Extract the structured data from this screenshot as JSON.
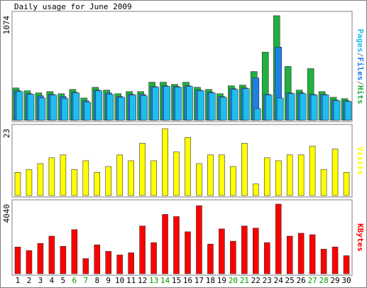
{
  "chart_data": [
    {
      "type": "bar",
      "title": "Daily usage for June 2009",
      "ylim": [
        0,
        1074
      ],
      "yticks": [
        1074
      ],
      "legend_separator": "/",
      "legend_order": [
        2,
        1,
        0
      ],
      "series": [
        {
          "name": "Hits",
          "color": "#20b040",
          "values": [
            331,
            302,
            280,
            294,
            272,
            316,
            228,
            338,
            309,
            272,
            294,
            294,
            390,
            390,
            368,
            390,
            338,
            316,
            272,
            353,
            360,
            500,
            699,
            1074,
            552,
            309,
            530,
            294,
            235,
            221
          ]
        },
        {
          "name": "Files",
          "color": "#1e7fe8",
          "values": [
            302,
            272,
            250,
            265,
            243,
            287,
            199,
            309,
            280,
            243,
            265,
            265,
            346,
            353,
            346,
            353,
            309,
            287,
            243,
            324,
            331,
            434,
            265,
            751,
            280,
            280,
            265,
            265,
            206,
            199
          ]
        },
        {
          "name": "Pages",
          "color": "#1ebef0",
          "values": [
            294,
            265,
            228,
            258,
            221,
            280,
            184,
            302,
            265,
            235,
            258,
            250,
            339,
            346,
            339,
            346,
            302,
            280,
            235,
            316,
            324,
            118,
            258,
            228,
            272,
            272,
            258,
            258,
            199,
            192
          ]
        }
      ]
    },
    {
      "type": "bar",
      "ylim": [
        0,
        23
      ],
      "yticks": [
        23
      ],
      "series": [
        {
          "name": "Visits",
          "color": "#ffff00",
          "values": [
            8,
            9,
            11,
            13,
            14,
            9,
            12,
            8,
            10,
            14,
            12,
            18,
            12,
            23,
            15,
            20,
            11,
            14,
            14,
            10,
            18,
            4,
            13,
            12,
            14,
            14,
            17,
            9,
            16,
            8
          ]
        }
      ]
    },
    {
      "type": "bar",
      "ylim": [
        0,
        4040
      ],
      "yticks": [
        4040
      ],
      "series": [
        {
          "name": "KBytes",
          "color": "#ff0000",
          "values": [
            1554,
            1344,
            1764,
            2184,
            1596,
            2562,
            882,
            1680,
            1302,
            1092,
            1218,
            2772,
            1806,
            3444,
            3318,
            2436,
            3948,
            1722,
            2604,
            1890,
            2772,
            2646,
            1806,
            4040,
            2184,
            2352,
            2268,
            1428,
            1554,
            1050
          ]
        }
      ],
      "categories": [
        "1",
        "2",
        "3",
        "4",
        "5",
        "6",
        "7",
        "8",
        "9",
        "10",
        "11",
        "12",
        "13",
        "14",
        "15",
        "16",
        "17",
        "18",
        "19",
        "20",
        "21",
        "22",
        "23",
        "24",
        "25",
        "26",
        "27",
        "28",
        "29",
        "30"
      ],
      "category_colors": [
        "#000",
        "#000",
        "#000",
        "#000",
        "#000",
        "#00a000",
        "#00a000",
        "#000",
        "#000",
        "#000",
        "#000",
        "#000",
        "#00a000",
        "#00a000",
        "#000",
        "#000",
        "#000",
        "#000",
        "#000",
        "#00a000",
        "#00a000",
        "#000",
        "#000",
        "#000",
        "#000",
        "#000",
        "#00a000",
        "#00a000",
        "#000",
        "#000"
      ]
    }
  ]
}
